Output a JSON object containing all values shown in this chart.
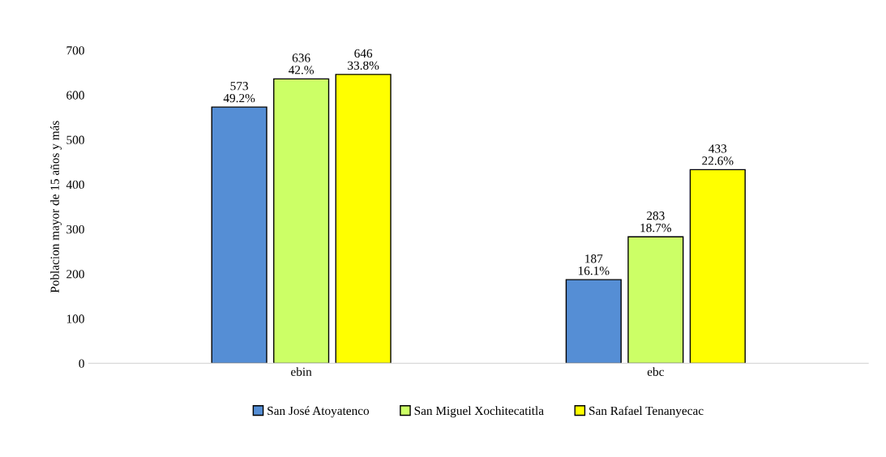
{
  "chart_data": {
    "type": "bar",
    "ylabel": "Poblacion mayor de 15 años y más",
    "categories": [
      "ebin",
      "ebc"
    ],
    "series": [
      {
        "name": "San José Atoyatenco",
        "color": "#558ed5",
        "values": [
          573,
          187
        ],
        "value_labels": [
          "573\n49.2%",
          "187\n16.1%"
        ]
      },
      {
        "name": "San Miguel Xochitecatitla",
        "color": "#ccff66",
        "values": [
          636,
          283
        ],
        "value_labels": [
          "636\n42.%",
          "283\n18.7%"
        ]
      },
      {
        "name": "San Rafael Tenanyecac",
        "color": "#ffff00",
        "values": [
          646,
          433
        ],
        "value_labels": [
          "646\n33.8%",
          "433\n22.6%"
        ]
      }
    ],
    "ylim": [
      0,
      700
    ],
    "yticks": [
      0,
      100,
      200,
      300,
      400,
      500,
      600,
      700
    ],
    "grid": false,
    "legend": "bottom"
  }
}
